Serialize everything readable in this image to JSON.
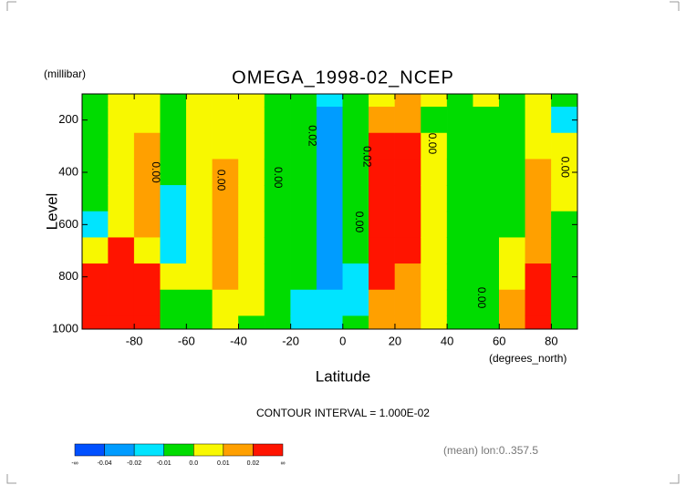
{
  "chart_data": {
    "type": "contour",
    "title": "OMEGA_1998-02_NCEP",
    "y_unit": "(millibar)",
    "ylabel": "Level",
    "xlabel": "Latitude",
    "x_unit": "(degrees_north)",
    "contour_interval": "CONTOUR INTERVAL = 1.000E-02",
    "footnote": "(mean) lon:0..357.5",
    "xlim": [
      -100,
      90
    ],
    "ylim": [
      1000,
      100
    ],
    "xticks": [
      -80,
      -60,
      -40,
      -20,
      0,
      20,
      40,
      60,
      80
    ],
    "yticks": [
      200,
      400,
      600,
      800,
      1000
    ],
    "x": [
      -95,
      -85,
      -75,
      -65,
      -55,
      -45,
      -35,
      -25,
      -15,
      -5,
      5,
      15,
      25,
      35,
      45,
      55,
      65,
      75,
      85
    ],
    "levels": [
      100,
      200,
      300,
      400,
      500,
      600,
      700,
      800,
      900,
      1000
    ],
    "z": [
      [
        -0.005,
        -0.005,
        -0.005,
        -0.005,
        -0.005,
        -0.015,
        0.005,
        0.025,
        0.025,
        0.025
      ],
      [
        0.005,
        0.005,
        0.005,
        0.005,
        0.005,
        0.005,
        0.025,
        0.025,
        0.025,
        0.025
      ],
      [
        0.005,
        0.005,
        0.015,
        0.015,
        0.015,
        0.015,
        0.005,
        0.025,
        0.025,
        0.025
      ],
      [
        -0.005,
        -0.005,
        -0.005,
        -0.005,
        -0.015,
        -0.015,
        -0.015,
        0.005,
        -0.005,
        -0.005
      ],
      [
        0.005,
        0.005,
        0.005,
        0.005,
        0.005,
        0.005,
        0.005,
        0.005,
        -0.005,
        -0.005
      ],
      [
        0.005,
        0.005,
        0.005,
        0.015,
        0.015,
        0.015,
        0.015,
        0.015,
        0.005,
        0.005
      ],
      [
        0.005,
        0.005,
        0.005,
        0.005,
        0.005,
        0.005,
        0.005,
        0.005,
        0.005,
        -0.005
      ],
      [
        -0.005,
        -0.005,
        -0.005,
        -0.005,
        -0.005,
        -0.005,
        -0.005,
        -0.005,
        -0.005,
        -0.005
      ],
      [
        -0.005,
        -0.005,
        -0.005,
        -0.005,
        -0.005,
        -0.005,
        -0.005,
        -0.005,
        -0.015,
        -0.015
      ],
      [
        -0.015,
        -0.03,
        -0.03,
        -0.03,
        -0.03,
        -0.03,
        -0.03,
        -0.03,
        -0.015,
        -0.015
      ],
      [
        -0.005,
        -0.005,
        -0.005,
        -0.005,
        -0.005,
        -0.005,
        -0.005,
        -0.015,
        -0.015,
        -0.005
      ],
      [
        0.005,
        0.015,
        0.025,
        0.025,
        0.025,
        0.025,
        0.025,
        0.025,
        0.015,
        0.015
      ],
      [
        0.015,
        0.015,
        0.025,
        0.025,
        0.025,
        0.025,
        0.025,
        0.015,
        0.015,
        0.015
      ],
      [
        0.005,
        -0.005,
        0.005,
        0.005,
        0.005,
        0.005,
        0.005,
        0.005,
        0.005,
        0.005
      ],
      [
        -0.005,
        -0.005,
        -0.005,
        -0.005,
        -0.005,
        -0.005,
        -0.005,
        -0.005,
        -0.005,
        -0.005
      ],
      [
        0.005,
        -0.005,
        -0.005,
        -0.005,
        -0.005,
        -0.005,
        -0.005,
        -0.005,
        -0.005,
        -0.005
      ],
      [
        -0.005,
        -0.005,
        -0.005,
        -0.005,
        -0.005,
        -0.005,
        0.005,
        0.005,
        0.015,
        0.015
      ],
      [
        0.005,
        0.005,
        0.005,
        0.015,
        0.015,
        0.015,
        0.015,
        0.025,
        0.025,
        0.025
      ],
      [
        -0.005,
        -0.015,
        0.005,
        0.005,
        0.005,
        -0.005,
        -0.005,
        -0.005,
        -0.005,
        -0.005
      ]
    ],
    "contour_labels": [
      {
        "text": "0.00",
        "lat": -72,
        "level": 400
      },
      {
        "text": "0.00",
        "lat": -47,
        "level": 430
      },
      {
        "text": "0.00",
        "lat": -25,
        "level": 420
      },
      {
        "text": "0.02",
        "lat": -12,
        "level": 260
      },
      {
        "text": "0.02",
        "lat": 9,
        "level": 340
      },
      {
        "text": "0.00",
        "lat": 6,
        "level": 590
      },
      {
        "text": "0.00",
        "lat": 34,
        "level": 290
      },
      {
        "text": "0.00",
        "lat": 53,
        "level": 880
      },
      {
        "text": "0.00",
        "lat": 85,
        "level": 380
      }
    ],
    "colorbar": {
      "ticks": [
        -0.04,
        -0.02,
        -0.01,
        {
          "value": 0,
          "label": "0.0"
        },
        0.01,
        0.02
      ],
      "ends": [
        "-∞",
        "∞"
      ],
      "colors": [
        "#0050ff",
        "#009cff",
        "#00e4ff",
        "#00dc00",
        "#f8f800",
        "#ffa000",
        "#ff1400"
      ]
    }
  }
}
